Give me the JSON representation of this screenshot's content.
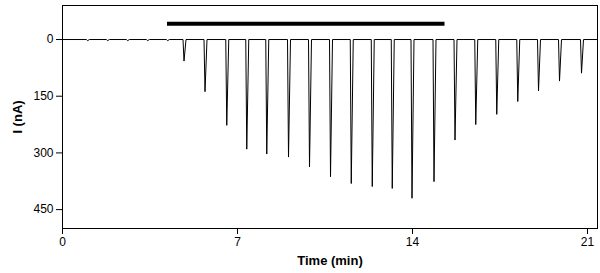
{
  "chart_data": {
    "type": "line",
    "x_label": "Time (min)",
    "y_label": "I (nA)",
    "xlim": [
      0,
      21.4
    ],
    "xticks": [
      0,
      7,
      14,
      21
    ],
    "ylim": [
      500,
      -90
    ],
    "yticks": [
      0,
      150,
      300,
      450
    ],
    "grid": false,
    "color": "#000000",
    "baseline": 0,
    "x": [
      1.0,
      1.8,
      2.6,
      3.4,
      4.2,
      4.86,
      5.7,
      6.57,
      7.37,
      8.17,
      9.04,
      9.88,
      10.72,
      11.55,
      12.39,
      13.19,
      13.98,
      14.86,
      15.7,
      16.53,
      17.37,
      18.21,
      19.04,
      19.88,
      20.76
    ],
    "values": [
      3,
      3,
      3,
      3,
      3,
      57,
      138,
      227,
      290,
      303,
      311,
      337,
      363,
      381,
      389,
      394,
      420,
      376,
      266,
      225,
      198,
      164,
      136,
      110,
      89
    ],
    "stimulus_bar": {
      "x": [
        4.2,
        15.3
      ],
      "y": -42
    }
  }
}
